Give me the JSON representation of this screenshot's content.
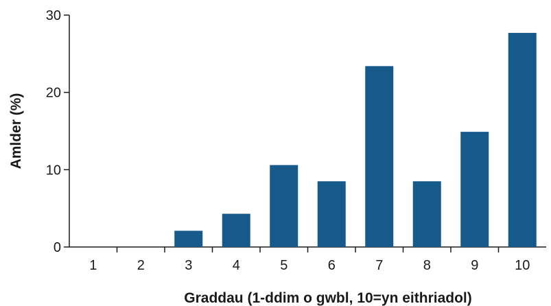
{
  "chart_data": {
    "type": "bar",
    "title": "",
    "xlabel": "Graddau (1-ddim o gwbl, 10=yn eithriadol)",
    "ylabel": "Amlder (%)",
    "categories": [
      "1",
      "2",
      "3",
      "4",
      "5",
      "6",
      "7",
      "8",
      "9",
      "10"
    ],
    "values": [
      0,
      0,
      2.1,
      4.3,
      10.6,
      8.5,
      23.4,
      8.5,
      14.9,
      27.7
    ],
    "ylim": [
      0,
      30
    ],
    "yticks": [
      0,
      10,
      20,
      30
    ],
    "grid": false,
    "legend": "none",
    "bar_color": "#165a8c"
  }
}
